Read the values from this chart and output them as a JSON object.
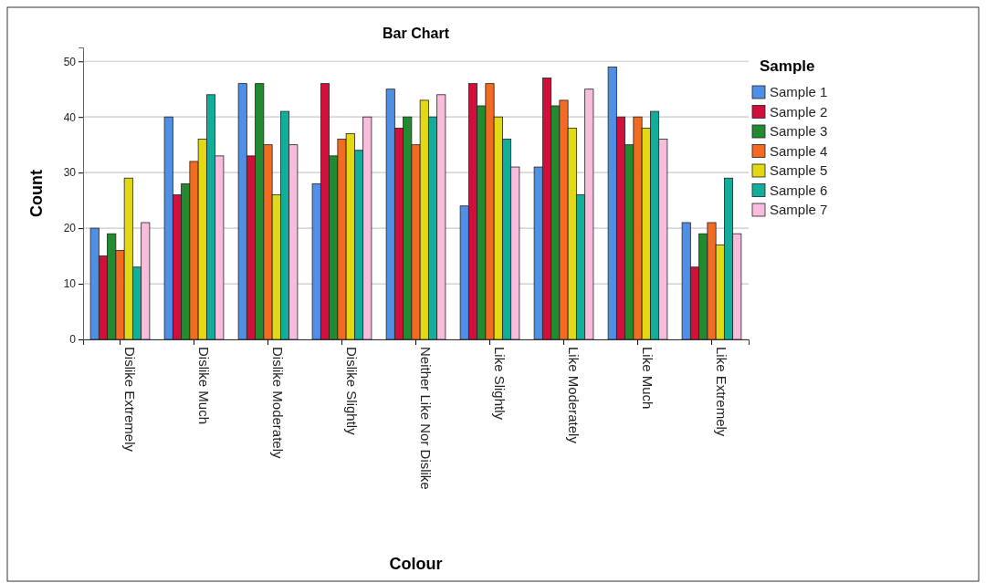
{
  "chart_data": {
    "type": "bar",
    "title": "Bar Chart",
    "xlabel": "Colour",
    "ylabel": "Count",
    "legend_title": "Sample",
    "legend": "right",
    "categories": [
      "Dislike Extremely",
      "Dislike Much",
      "Dislike Moderately",
      "Dislike Slightly",
      "Neither Like Nor Dislike",
      "Like Slightly",
      "Like Moderately",
      "Like Much",
      "Like Extremely"
    ],
    "series": [
      {
        "name": "Sample 1",
        "color": "#4f8fe6",
        "values": [
          20,
          40,
          46,
          28,
          45,
          24,
          31,
          49,
          21
        ]
      },
      {
        "name": "Sample 2",
        "color": "#d0103a",
        "values": [
          15,
          26,
          33,
          46,
          38,
          46,
          47,
          40,
          13
        ]
      },
      {
        "name": "Sample 3",
        "color": "#238b2f",
        "values": [
          19,
          28,
          46,
          33,
          40,
          42,
          42,
          35,
          19
        ]
      },
      {
        "name": "Sample 4",
        "color": "#f26b21",
        "values": [
          16,
          32,
          35,
          36,
          35,
          46,
          43,
          40,
          21
        ]
      },
      {
        "name": "Sample 5",
        "color": "#e2d914",
        "values": [
          29,
          36,
          26,
          37,
          43,
          40,
          38,
          38,
          17
        ]
      },
      {
        "name": "Sample 6",
        "color": "#13ad9c",
        "values": [
          13,
          44,
          41,
          34,
          40,
          36,
          26,
          41,
          29
        ]
      },
      {
        "name": "Sample 7",
        "color": "#f8bcdc",
        "values": [
          21,
          33,
          35,
          40,
          44,
          31,
          45,
          36,
          19
        ]
      }
    ],
    "ylim": [
      0,
      52.5
    ],
    "yticks": [
      0,
      10,
      20,
      30,
      40,
      50
    ],
    "grid": "y"
  }
}
